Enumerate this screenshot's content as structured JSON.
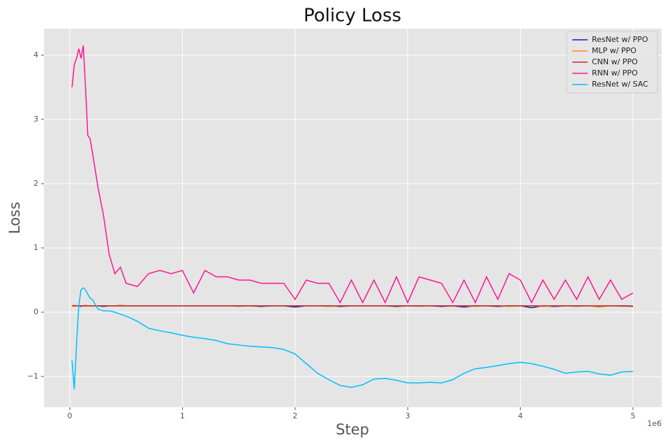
{
  "chart_data": {
    "type": "line",
    "title": "Policy Loss",
    "x_label": "Step",
    "y_label": "Loss",
    "x_offset_label": "1e6",
    "x": [
      20000,
      40000,
      60000,
      80000,
      100000,
      120000,
      140000,
      160000,
      180000,
      200000,
      250000,
      300000,
      350000,
      400000,
      450000,
      500000,
      600000,
      700000,
      800000,
      900000,
      1000000,
      1100000,
      1200000,
      1300000,
      1400000,
      1500000,
      1600000,
      1700000,
      1800000,
      1900000,
      2000000,
      2100000,
      2200000,
      2300000,
      2400000,
      2500000,
      2600000,
      2700000,
      2800000,
      2900000,
      3000000,
      3100000,
      3200000,
      3300000,
      3400000,
      3500000,
      3600000,
      3700000,
      3800000,
      3900000,
      4000000,
      4100000,
      4200000,
      4300000,
      4400000,
      4500000,
      4600000,
      4700000,
      4800000,
      4900000,
      5000000
    ],
    "series": [
      {
        "name": "ResNet w/ PPO",
        "color": "#1a1ab0",
        "values": [
          0.1,
          0.1,
          0.1,
          0.1,
          0.09,
          0.1,
          0.1,
          0.1,
          0.1,
          0.1,
          0.1,
          0.09,
          0.1,
          0.1,
          0.1,
          0.1,
          0.1,
          0.1,
          0.1,
          0.1,
          0.1,
          0.1,
          0.1,
          0.1,
          0.1,
          0.1,
          0.1,
          0.09,
          0.1,
          0.1,
          0.08,
          0.1,
          0.1,
          0.1,
          0.09,
          0.1,
          0.1,
          0.1,
          0.1,
          0.09,
          0.1,
          0.1,
          0.1,
          0.09,
          0.1,
          0.08,
          0.1,
          0.1,
          0.09,
          0.1,
          0.1,
          0.07,
          0.1,
          0.09,
          0.1,
          0.1,
          0.1,
          0.09,
          0.1,
          0.1,
          0.1
        ]
      },
      {
        "name": "MLP w/ PPO",
        "color": "#ff8c1a",
        "values": [
          0.1,
          0.11,
          0.1,
          0.1,
          0.1,
          0.1,
          0.11,
          0.1,
          0.1,
          0.1,
          0.1,
          0.1,
          0.1,
          0.1,
          0.11,
          0.1,
          0.1,
          0.1,
          0.1,
          0.1,
          0.1,
          0.1,
          0.1,
          0.1,
          0.1,
          0.09,
          0.1,
          0.1,
          0.1,
          0.1,
          0.1,
          0.1,
          0.1,
          0.09,
          0.1,
          0.1,
          0.1,
          0.1,
          0.1,
          0.1,
          0.1,
          0.09,
          0.1,
          0.1,
          0.1,
          0.1,
          0.09,
          0.1,
          0.1,
          0.09,
          0.1,
          0.1,
          0.09,
          0.1,
          0.1,
          0.09,
          0.1,
          0.08,
          0.1,
          0.09,
          0.1
        ]
      },
      {
        "name": "CNN w/ PPO",
        "color": "#c03030",
        "values": [
          0.1,
          0.1,
          0.1,
          0.1,
          0.1,
          0.1,
          0.1,
          0.1,
          0.1,
          0.1,
          0.1,
          0.1,
          0.1,
          0.1,
          0.1,
          0.1,
          0.1,
          0.1,
          0.1,
          0.1,
          0.1,
          0.1,
          0.1,
          0.1,
          0.1,
          0.1,
          0.1,
          0.1,
          0.1,
          0.1,
          0.1,
          0.1,
          0.1,
          0.1,
          0.1,
          0.1,
          0.1,
          0.1,
          0.1,
          0.1,
          0.1,
          0.1,
          0.1,
          0.1,
          0.1,
          0.1,
          0.1,
          0.1,
          0.1,
          0.1,
          0.1,
          0.1,
          0.1,
          0.1,
          0.1,
          0.1,
          0.1,
          0.1,
          0.1,
          0.1,
          0.09
        ]
      },
      {
        "name": "RNN w/ PPO",
        "color": "#ff1493",
        "values": [
          3.5,
          3.85,
          3.95,
          4.1,
          3.95,
          4.15,
          3.5,
          2.75,
          2.7,
          2.5,
          1.95,
          1.5,
          0.9,
          0.6,
          0.7,
          0.45,
          0.4,
          0.6,
          0.65,
          0.6,
          0.65,
          0.3,
          0.65,
          0.55,
          0.55,
          0.5,
          0.5,
          0.45,
          0.45,
          0.45,
          0.2,
          0.5,
          0.45,
          0.45,
          0.15,
          0.5,
          0.15,
          0.5,
          0.15,
          0.55,
          0.15,
          0.55,
          0.5,
          0.45,
          0.15,
          0.5,
          0.15,
          0.55,
          0.2,
          0.6,
          0.5,
          0.15,
          0.5,
          0.2,
          0.5,
          0.2,
          0.55,
          0.2,
          0.5,
          0.2,
          0.3
        ]
      },
      {
        "name": "ResNet w/ SAC",
        "color": "#00bfff",
        "values": [
          -0.75,
          -1.2,
          -0.5,
          0.1,
          0.35,
          0.38,
          0.35,
          0.28,
          0.22,
          0.2,
          0.05,
          0.02,
          0.02,
          0.0,
          -0.03,
          -0.06,
          -0.14,
          -0.25,
          -0.29,
          -0.32,
          -0.36,
          -0.39,
          -0.41,
          -0.44,
          -0.49,
          -0.51,
          -0.53,
          -0.54,
          -0.55,
          -0.58,
          -0.65,
          -0.8,
          -0.95,
          -1.05,
          -1.14,
          -1.17,
          -1.13,
          -1.04,
          -1.03,
          -1.06,
          -1.1,
          -1.1,
          -1.09,
          -1.1,
          -1.05,
          -0.95,
          -0.88,
          -0.86,
          -0.83,
          -0.8,
          -0.78,
          -0.8,
          -0.84,
          -0.89,
          -0.95,
          -0.93,
          -0.92,
          -0.96,
          -0.98,
          -0.93,
          -0.92
        ]
      }
    ],
    "xlim": [
      -229000,
      5254000
    ],
    "xticks": [
      0,
      {
        "value": 1000000,
        "label": "1"
      },
      {
        "value": 2000000,
        "label": "2"
      },
      {
        "value": 3000000,
        "label": "3"
      },
      {
        "value": 4000000,
        "label": "4"
      },
      {
        "value": 5000000,
        "label": "5"
      }
    ],
    "ylim": [
      -1.478,
      4.413
    ],
    "yticks": [
      {
        "value": -1,
        "label": "−1"
      },
      0,
      1,
      2,
      3,
      4
    ],
    "grid": true,
    "legend": "upper right"
  }
}
